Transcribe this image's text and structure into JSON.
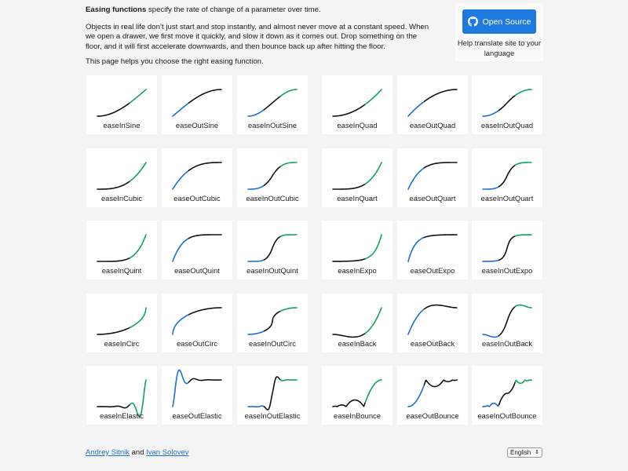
{
  "intro": {
    "title": "Easing functions",
    "title_rest": " specify the rate of change of a parameter over time.",
    "para2": "Objects in real life don’t just start and stop instantly, and almost never move at a constant speed. When we open a drawer, we first move it quickly, and slow it down as it comes out. Drop something on the floor, and it will first accelerate downwards, and then bounce back up after hitting the floor.",
    "para3": "This page helps you choose the right easing function."
  },
  "open_source": {
    "button_label": "Open Source",
    "icon": "github-icon",
    "help_text": "Help translate site to your language"
  },
  "colors": {
    "in_segment": "#1a6fd6",
    "out_segment": "#10a35a",
    "curve": "#111111",
    "accent": "#1f7ae0"
  },
  "easings": [
    "easeInSine",
    "easeOutSine",
    "easeInOutSine",
    "easeInQuad",
    "easeOutQuad",
    "easeInOutQuad",
    "easeInCubic",
    "easeOutCubic",
    "easeInOutCubic",
    "easeInQuart",
    "easeOutQuart",
    "easeInOutQuart",
    "easeInQuint",
    "easeOutQuint",
    "easeInOutQuint",
    "easeInExpo",
    "easeOutExpo",
    "easeInOutExpo",
    "easeInCirc",
    "easeOutCirc",
    "easeInOutCirc",
    "easeInBack",
    "easeOutBack",
    "easeInOutBack",
    "easeInElastic",
    "easeOutElastic",
    "easeInOutElastic",
    "easeInBounce",
    "easeOutBounce",
    "easeInOutBounce"
  ],
  "footer": {
    "author1": "Andrey Sitnik",
    "and": " and ",
    "author2": "Ivan Solovev"
  },
  "language": {
    "selected": "English"
  }
}
